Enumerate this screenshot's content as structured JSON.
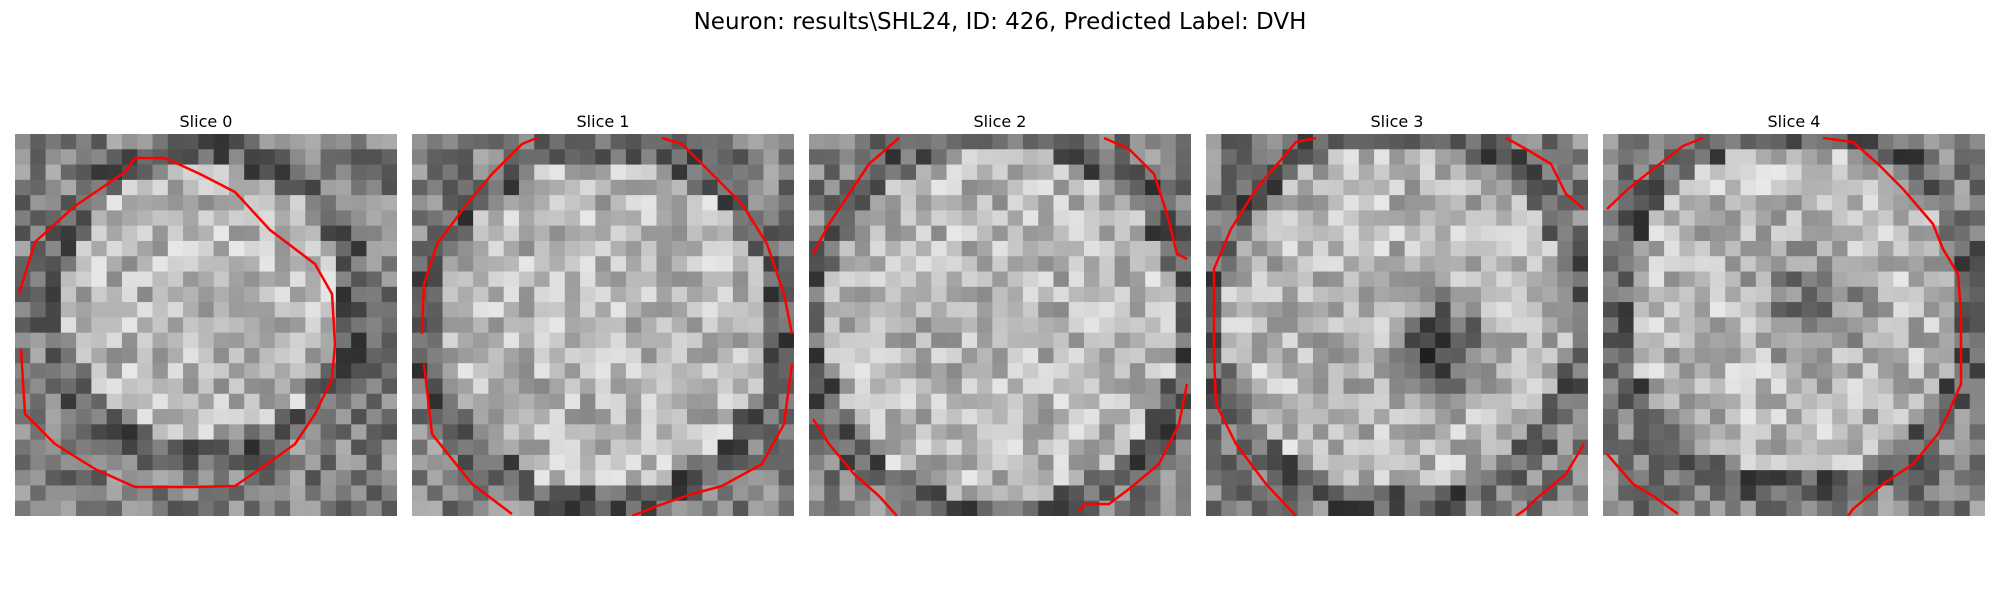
{
  "figure": {
    "title": "Neuron: results\\SHL24, ID: 426, Predicted Label: DVH"
  },
  "panels": [
    {
      "title": "Slice 0"
    },
    {
      "title": "Slice 1"
    },
    {
      "title": "Slice 2"
    },
    {
      "title": "Slice 3"
    },
    {
      "title": "Slice 4"
    }
  ],
  "style": {
    "contour_color": "#ff0000",
    "colormap": "gray"
  }
}
